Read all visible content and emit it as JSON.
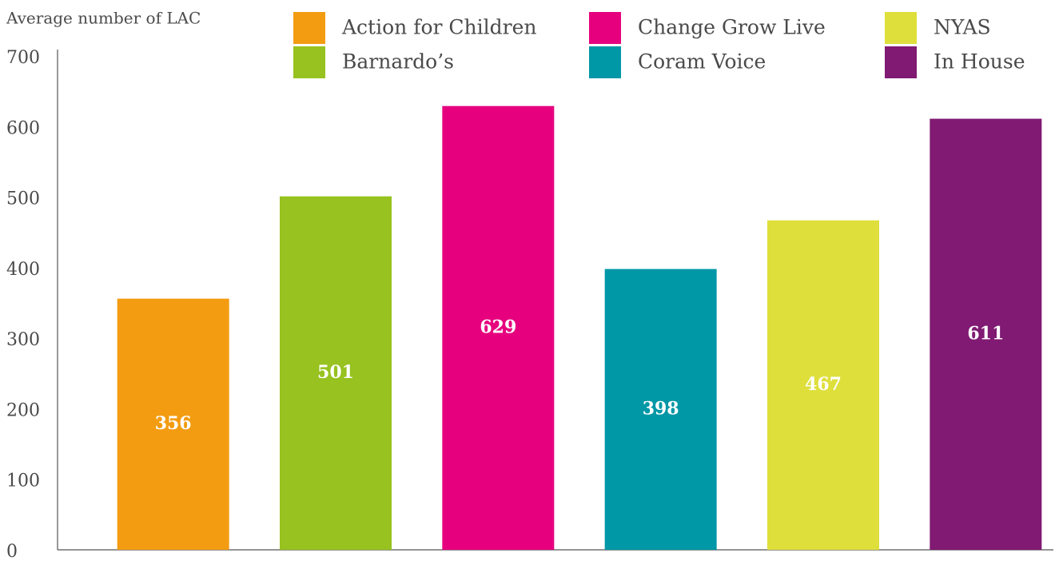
{
  "chart_data": {
    "type": "bar",
    "y_axis_label": "Average number of LAC",
    "categories": [
      "Action for Children",
      "Barnardo’s",
      "Change Grow Live",
      "Coram Voice",
      "NYAS",
      "In House"
    ],
    "values": [
      356,
      501,
      629,
      398,
      467,
      611
    ],
    "colors": [
      "#f39c12",
      "#97c21f",
      "#e6007e",
      "#0097a7",
      "#dedf3b",
      "#801a72"
    ],
    "ylim": [
      0,
      700
    ],
    "yticks": [
      0,
      100,
      200,
      300,
      400,
      500,
      600,
      700
    ],
    "legend": "top",
    "grid": false
  }
}
